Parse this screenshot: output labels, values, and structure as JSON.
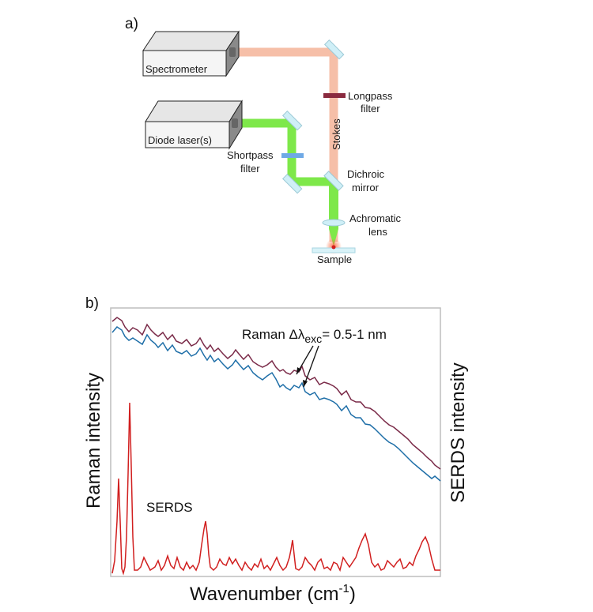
{
  "panel_a": {
    "label": "a)",
    "components": {
      "spectrometer": "Spectrometer",
      "diode_laser": "Diode laser(s)",
      "longpass_filter": [
        "Longpass",
        "filter"
      ],
      "stokes": "Stokes",
      "shortpass_filter": [
        "Shortpass",
        "filter"
      ],
      "dichroic_mirror": [
        "Dichroic",
        "mirror"
      ],
      "achromatic_lens": [
        "Achromatic",
        "lens"
      ],
      "sample": "Sample"
    },
    "colors": {
      "laser_beam": "#7ee84a",
      "stokes_beam": "#f6bfa8",
      "longpass_filter": "#8a2a3f",
      "shortpass_filter": "#6fa9e6",
      "mirror": "#cfeff7",
      "box_top": "#e6e6e6",
      "box_side": "#8a8a8a"
    }
  },
  "panel_b": {
    "label": "b)",
    "left_axis_title": "Raman intensity",
    "right_axis_title": "SERDS intensity",
    "x_axis_title": "Wavenumber (cm",
    "x_axis_title_sup": "-1",
    "x_axis_title_end": ")",
    "raman_annotation": "Raman Δλ",
    "raman_annotation_sub": "exc",
    "raman_annotation_end": "= 0.5-1 nm",
    "serds_label": "SERDS",
    "colors": {
      "raman_1": "#7a2a48",
      "raman_2": "#1f6fa8",
      "serds": "#d11f1f",
      "frame": "#bdbdbd"
    }
  }
}
